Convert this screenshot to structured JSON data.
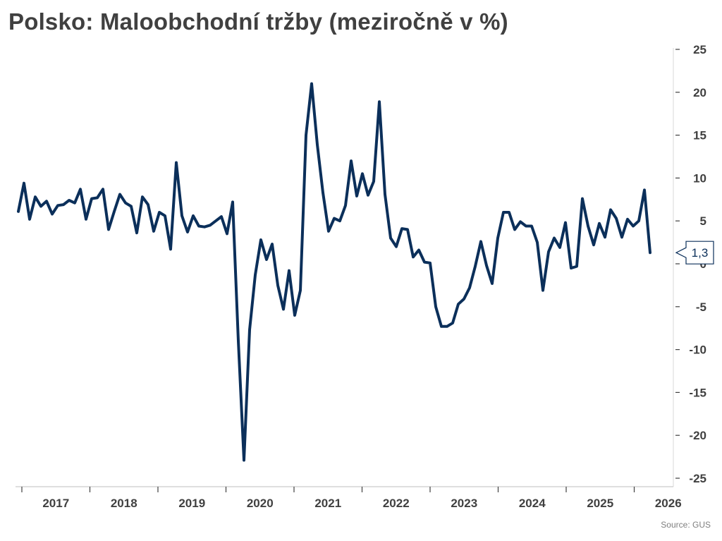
{
  "title": "Polsko: Maloobchodní tržby (meziročně v %)",
  "source": "Source: GUS",
  "colors": {
    "line": "#0b2f5a",
    "axis": "#404040",
    "source_text": "#7f7f7f"
  },
  "chart_data": {
    "type": "line",
    "title": "Polsko: Maloobchodní tržby (meziročně v %)",
    "xlabel": "",
    "ylabel": "",
    "ylim": [
      -25,
      25
    ],
    "yticks": [
      25,
      20,
      15,
      10,
      5,
      0,
      -5,
      -10,
      -15,
      -20,
      -25
    ],
    "grid": false,
    "y_axis_position": "right",
    "year_labels": [
      "2017",
      "2018",
      "2019",
      "2020",
      "2021",
      "2022",
      "2023",
      "2024",
      "2025",
      "2026"
    ],
    "x_start": "2016-09",
    "x_end": "2026-03",
    "last_value_label": "1,3",
    "series": [
      {
        "values": [
          6.1,
          9.4,
          5.2,
          7.8,
          6.7,
          7.3,
          5.8,
          6.8,
          6.9,
          7.4,
          7.1,
          8.7,
          5.2,
          7.6,
          7.7,
          8.7,
          4.0,
          6.1,
          8.1,
          7.1,
          6.7,
          3.6,
          7.8,
          6.9,
          3.8,
          6.0,
          5.6,
          1.7,
          11.8,
          5.6,
          3.7,
          5.6,
          4.4,
          4.3,
          4.5,
          5.0,
          5.5,
          3.5,
          7.2,
          -9.0,
          -22.9,
          -7.7,
          -1.3,
          2.8,
          0.5,
          2.3,
          -2.5,
          -5.3,
          -0.8,
          -6.0,
          -3.1,
          15.0,
          21.0,
          13.9,
          8.3,
          3.8,
          5.3,
          5.0,
          6.8,
          12.0,
          7.9,
          10.5,
          8.0,
          9.6,
          18.9,
          8.1,
          3.0,
          2.0,
          4.1,
          4.0,
          0.8,
          1.6,
          0.2,
          0.1,
          -5.0,
          -7.3,
          -7.3,
          -6.9,
          -4.7,
          -4.1,
          -2.8,
          -0.3,
          2.6,
          -0.2,
          -2.3,
          3.0,
          6.0,
          6.0,
          4.0,
          4.9,
          4.4,
          4.4,
          2.5,
          -3.1,
          1.4,
          3.0,
          1.9,
          4.8,
          -0.5,
          -0.3,
          7.6,
          4.4,
          2.2,
          4.7,
          3.1,
          6.3,
          5.3,
          3.1,
          5.2,
          4.4,
          5.0,
          8.6,
          1.3
        ]
      }
    ]
  }
}
